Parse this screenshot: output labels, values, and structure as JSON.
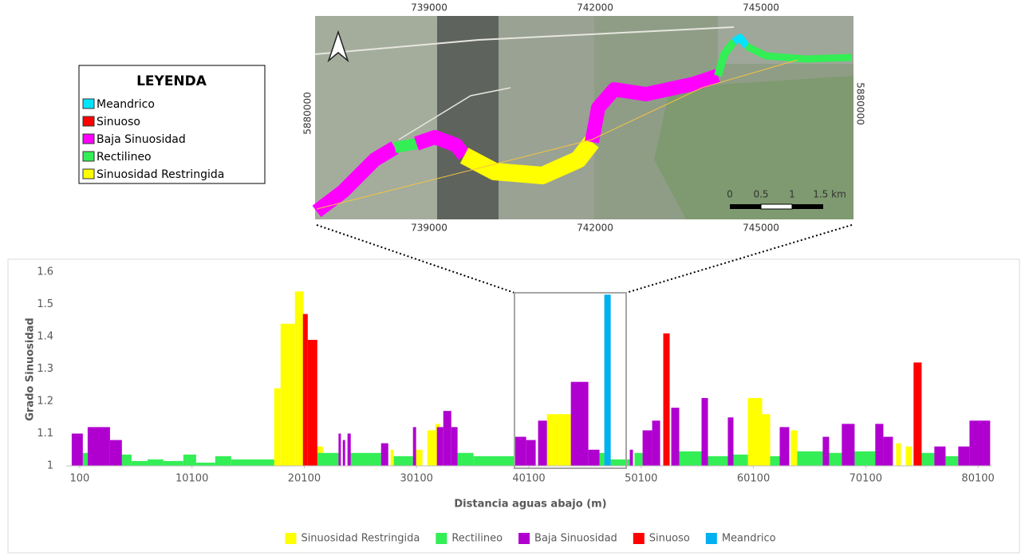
{
  "map": {
    "coords_top": [
      "739000",
      "742000",
      "745000"
    ],
    "coords_bottom": [
      "739000",
      "742000",
      "745000"
    ],
    "coord_left": "5880000",
    "coord_right": "5880000",
    "scale": [
      "0",
      "0.5",
      "1",
      "1.5 km"
    ],
    "legend": {
      "title": "LEYENDA",
      "items": [
        "Meandrico",
        "Sinuoso",
        "Baja Sinuosidad",
        "Rectilineo",
        "Sinuosidad Restringida"
      ]
    }
  },
  "chart_data": {
    "type": "bar",
    "x_label": "Distancia aguas abajo (m)",
    "y_label": "Grado Sinuosidad",
    "xlim": [
      -1100,
      81300
    ],
    "xticks": [
      100,
      10100,
      20100,
      30100,
      40100,
      50100,
      60100,
      70100,
      80100
    ],
    "ylim": [
      1,
      1.6
    ],
    "yticks": [
      1,
      1.1,
      1.2,
      1.3,
      1.4,
      1.5,
      1.6
    ],
    "grid": false,
    "legend": "bottom",
    "series": [
      {
        "name": "Sinuosidad Restringida",
        "color": "#ffff00",
        "x": [
          17420,
          17990,
          19270,
          21190,
          27790,
          30060,
          31060,
          31770,
          41710,
          59600,
          60880,
          63430,
          72800,
          73660
        ],
        "x2": [
          17990,
          19270,
          20050,
          21760,
          28070,
          30630,
          31770,
          32190,
          43840,
          60880,
          61590,
          64000,
          73230,
          74220
        ],
        "values": [
          1.24,
          1.44,
          1.54,
          1.06,
          1.05,
          1.05,
          1.11,
          1.13,
          1.16,
          1.21,
          1.16,
          1.11,
          1.07,
          1.06
        ]
      },
      {
        "name": "Rectilineo",
        "color": "#33ee55",
        "x": [
          380,
          3860,
          4720,
          6140,
          7560,
          9330,
          10470,
          12170,
          13590,
          21260,
          24240,
          28070,
          33750,
          35170,
          46390,
          47390,
          49510,
          53490,
          56050,
          58320,
          61590,
          64000,
          66840,
          69110,
          75080,
          77210
        ],
        "x2": [
          810,
          4720,
          6140,
          7560,
          9330,
          10470,
          12170,
          13590,
          17420,
          23150,
          26940,
          29780,
          35170,
          38790,
          46820,
          49090,
          50230,
          55480,
          57820,
          59600,
          62440,
          66270,
          67970,
          70950,
          76210,
          78340
        ],
        "values": [
          1.04,
          1.035,
          1.015,
          1.02,
          1.015,
          1.035,
          1.01,
          1.03,
          1.02,
          1.04,
          1.04,
          1.03,
          1.04,
          1.03,
          1.04,
          1.02,
          1.04,
          1.045,
          1.03,
          1.035,
          1.03,
          1.045,
          1.04,
          1.045,
          1.04,
          1.03
        ]
      },
      {
        "name": "Baja Sinuosidad",
        "color": "#b000d0",
        "x": [
          -610,
          810,
          2800,
          23150,
          23530,
          23950,
          26940,
          29780,
          31910,
          32480,
          33190,
          38870,
          39860,
          40920,
          43840,
          45400,
          49090,
          50230,
          51080,
          52780,
          55480,
          57820,
          62440,
          66270,
          67970,
          70950,
          71670,
          76210,
          78340,
          79340
        ],
        "x2": [
          380,
          2800,
          3860,
          23360,
          23740,
          24240,
          27580,
          30060,
          32480,
          33190,
          33750,
          39860,
          40710,
          41710,
          45400,
          46390,
          49370,
          51080,
          51790,
          53490,
          56050,
          58320,
          63290,
          66840,
          69110,
          71670,
          72520,
          77210,
          79340,
          81180
        ],
        "values": [
          1.1,
          1.12,
          1.08,
          1.1,
          1.08,
          1.1,
          1.07,
          1.12,
          1.12,
          1.17,
          1.12,
          1.09,
          1.08,
          1.14,
          1.26,
          1.05,
          1.05,
          1.11,
          1.14,
          1.18,
          1.21,
          1.15,
          1.12,
          1.09,
          1.13,
          1.13,
          1.09,
          1.06,
          1.06,
          1.14
        ]
      },
      {
        "name": "Sinuoso",
        "color": "#ff0000",
        "x": [
          19980,
          20410,
          52070,
          74360
        ],
        "x2": [
          20410,
          21260,
          52640,
          75080
        ],
        "values": [
          1.47,
          1.39,
          1.41,
          1.32
        ]
      },
      {
        "name": "Meandrico",
        "color": "#00b0f0",
        "x": [
          46820
        ],
        "x2": [
          47390
        ],
        "values": [
          1.53
        ]
      }
    ]
  }
}
